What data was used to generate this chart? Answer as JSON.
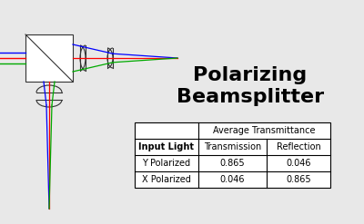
{
  "title_line1": "Polarizing",
  "title_line2": "Beamsplitter",
  "title_fontsize": 16,
  "title_fontweight": "bold",
  "table_header_row1": [
    "",
    "Average Transmittance"
  ],
  "table_header_row2": [
    "Input Light",
    "Transmission",
    "Reflection"
  ],
  "table_data": [
    [
      "Y Polarized",
      "0.865",
      "0.046"
    ],
    [
      "X Polarized",
      "0.046",
      "0.865"
    ]
  ],
  "bg_color": "#e8e8e8",
  "table_bg": "#ffffff",
  "beam_colors": [
    "#0000ff",
    "#ff0000",
    "#00aa00"
  ],
  "optics_color": "#333333"
}
